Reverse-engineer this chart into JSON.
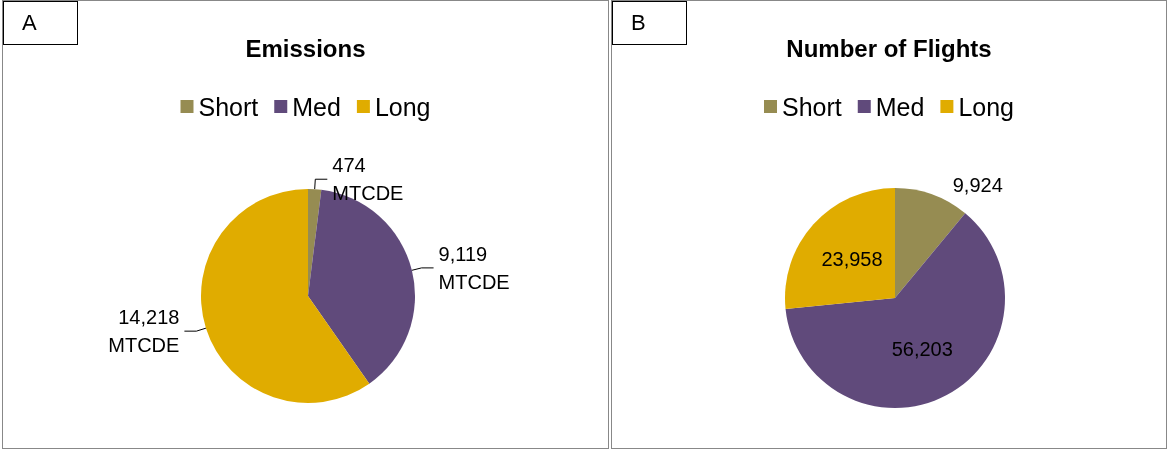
{
  "chart_data": [
    {
      "type": "pie",
      "title": "Emissions",
      "annotations": [
        "A"
      ],
      "categories": [
        "Short",
        "Med",
        "Long"
      ],
      "values": [
        474,
        9119,
        14218
      ],
      "colors": [
        "#968c52",
        "#604a7b",
        "#e0ac00"
      ],
      "value_labels": [
        "474\nMTCDE",
        "9,119\nMTCDE",
        "14,218\nMTCDE"
      ],
      "legend": "top"
    },
    {
      "type": "pie",
      "title": "Number of Flights",
      "annotations": [
        "B"
      ],
      "categories": [
        "Short",
        "Med",
        "Long"
      ],
      "values": [
        9924,
        56203,
        23958
      ],
      "colors": [
        "#968c52",
        "#604a7b",
        "#e0ac00"
      ],
      "value_labels": [
        "9,924",
        "56,203",
        "23,958"
      ],
      "legend": "top"
    }
  ]
}
